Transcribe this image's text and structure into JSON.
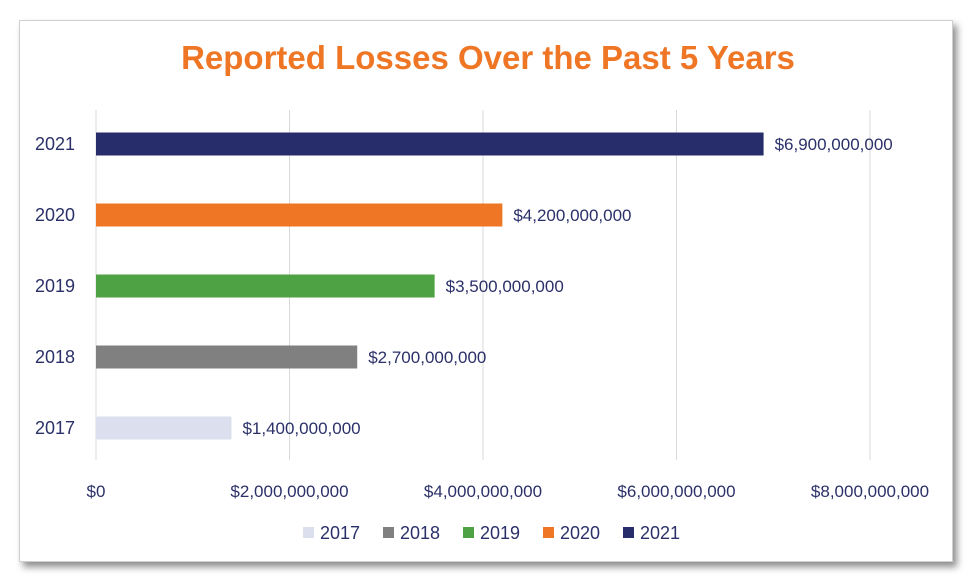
{
  "chart_data": {
    "type": "bar",
    "orientation": "horizontal",
    "title": "Reported Losses Over the Past 5 Years",
    "categories": [
      "2017",
      "2018",
      "2019",
      "2020",
      "2021"
    ],
    "values": [
      1400000000,
      2700000000,
      3500000000,
      4200000000,
      6900000000
    ],
    "data_labels": [
      "$1,400,000,000",
      "$2,700,000,000",
      "$3,500,000,000",
      "$4,200,000,000",
      "$6,900,000,000"
    ],
    "xlim": [
      0,
      8000000000
    ],
    "x_ticks": [
      0,
      2000000000,
      4000000000,
      6000000000,
      8000000000
    ],
    "x_tick_labels": [
      "$0",
      "$2,000,000,000",
      "$4,000,000,000",
      "$6,000,000,000",
      "$8,000,000,000"
    ],
    "xlabel": "",
    "ylabel": "",
    "grid": true,
    "legend_position": "bottom",
    "legend": [
      "2017",
      "2018",
      "2019",
      "2020",
      "2021"
    ],
    "colors": [
      "#dcdfed",
      "#808080",
      "#4ea244",
      "#ee7625",
      "#272c6b"
    ],
    "title_color": "#ee7625",
    "text_color": "#2b3069"
  }
}
